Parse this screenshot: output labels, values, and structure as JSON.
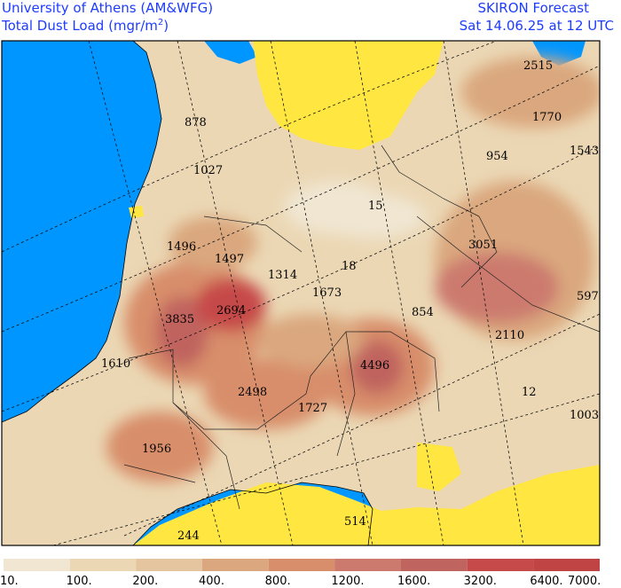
{
  "header": {
    "org": "University of Athens (AM&WFG)",
    "quantity": "Total Dust Load (mgr/m",
    "quantity_sup": "2",
    "quantity_close": ")",
    "product": "SKIRON Forecast",
    "valid_time": "Sat 14.06.25 at 12 UTC"
  },
  "map": {
    "colors": {
      "sea": "#0096ff",
      "clean_land": "#ffe640",
      "frame": "#000000"
    },
    "values": [
      {
        "label": "2515"
      },
      {
        "label": "1770"
      },
      {
        "label": "1543"
      },
      {
        "label": "954"
      },
      {
        "label": "878"
      },
      {
        "label": "1027"
      },
      {
        "label": "15"
      },
      {
        "label": "1496"
      },
      {
        "label": "1497"
      },
      {
        "label": "1314"
      },
      {
        "label": "18"
      },
      {
        "label": "3051"
      },
      {
        "label": "597"
      },
      {
        "label": "1673"
      },
      {
        "label": "3835"
      },
      {
        "label": "2694"
      },
      {
        "label": "854"
      },
      {
        "label": "2110"
      },
      {
        "label": "1610"
      },
      {
        "label": "4496"
      },
      {
        "label": "2498"
      },
      {
        "label": "12"
      },
      {
        "label": "1727"
      },
      {
        "label": "1003"
      },
      {
        "label": "1956"
      },
      {
        "label": "244"
      },
      {
        "label": "514"
      }
    ]
  },
  "legend": {
    "labels": [
      "10.",
      "100.",
      "200.",
      "400.",
      "800.",
      "1200.",
      "1600.",
      "3200.",
      "6400.",
      "7000."
    ],
    "colors": [
      "#f0e6d2",
      "#ebd7b4",
      "#e4c59f",
      "#daa77e",
      "#d88e6a",
      "#cc7a6e",
      "#c0645f",
      "#c64a49",
      "#c04444"
    ]
  }
}
